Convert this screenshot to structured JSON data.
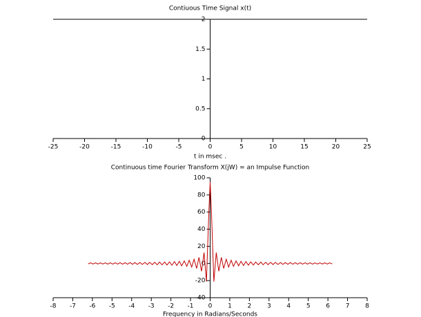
{
  "chart_data": [
    {
      "type": "line",
      "title": "Contiuous Time Signal x(t)",
      "x_label": "t in msec .",
      "x": [
        -25,
        25
      ],
      "series": [
        {
          "color": "#000000",
          "values": [
            2,
            2
          ]
        }
      ],
      "xlim": [
        -25,
        25
      ],
      "ylim": [
        0,
        2
      ],
      "xticks": [
        -25,
        -20,
        -15,
        -10,
        -5,
        0,
        5,
        10,
        15,
        20,
        25
      ],
      "yticks": [
        0,
        0.5,
        1,
        1.5,
        2
      ]
    },
    {
      "type": "line",
      "title": "Continuous time Fourier Transform X(jW) = an Impulse Function",
      "x_label": "Frequency in Radians/Seconds",
      "x": [
        -6.22,
        -6.09,
        -5.97,
        -5.84,
        -5.72,
        -5.59,
        -5.47,
        -5.34,
        -5.22,
        -5.09,
        -4.96,
        -4.84,
        -4.71,
        -4.59,
        -4.46,
        -4.34,
        -4.21,
        -4.08,
        -3.96,
        -3.83,
        -3.71,
        -3.58,
        -3.46,
        -3.33,
        -3.2,
        -3.08,
        -2.95,
        -2.83,
        -2.7,
        -2.58,
        -2.45,
        -2.32,
        -2.2,
        -2.07,
        -1.95,
        -1.82,
        -1.7,
        -1.57,
        -1.45,
        -1.32,
        -1.19,
        -1.07,
        -0.94,
        -0.82,
        -0.69,
        -0.57,
        -0.44,
        -0.31,
        -0.19,
        -0.06,
        0,
        0.06,
        0.19,
        0.31,
        0.44,
        0.57,
        0.69,
        0.82,
        0.94,
        1.07,
        1.19,
        1.32,
        1.45,
        1.57,
        1.7,
        1.82,
        1.95,
        2.07,
        2.2,
        2.32,
        2.45,
        2.58,
        2.7,
        2.83,
        2.95,
        3.08,
        3.2,
        3.33,
        3.46,
        3.58,
        3.71,
        3.83,
        3.96,
        4.08,
        4.21,
        4.34,
        4.46,
        4.59,
        4.71,
        4.84,
        4.96,
        5.09,
        5.22,
        5.34,
        5.47,
        5.59,
        5.72,
        5.84,
        5.97,
        6.09,
        6.22
      ],
      "series": [
        {
          "color": "#c00000",
          "values": [
            -0.6,
            0.7,
            -0.7,
            0.7,
            -0.7,
            0.7,
            -0.7,
            0.7,
            -0.8,
            0.8,
            -0.8,
            0.8,
            -0.8,
            0.9,
            -0.9,
            0.9,
            -0.9,
            1.0,
            -1.0,
            1.0,
            -1.1,
            1.1,
            -1.2,
            1.2,
            -1.2,
            1.3,
            -1.4,
            1.4,
            -1.5,
            1.6,
            -1.6,
            1.7,
            -1.8,
            1.9,
            -2.1,
            2.2,
            -2.4,
            2.5,
            -2.8,
            3.0,
            -3.4,
            3.7,
            -4.2,
            4.9,
            -5.8,
            7.1,
            -9.1,
            12.7,
            -21.2,
            63.7,
            95,
            63.7,
            -21.2,
            12.7,
            -9.1,
            7.1,
            -5.8,
            4.9,
            -4.2,
            3.7,
            -3.4,
            3.0,
            -2.8,
            2.5,
            -2.4,
            2.2,
            -2.1,
            1.9,
            -1.8,
            1.7,
            -1.6,
            1.6,
            -1.5,
            1.4,
            -1.4,
            1.3,
            -1.2,
            1.2,
            -1.2,
            1.1,
            -1.1,
            1.0,
            -1.0,
            1.0,
            -0.9,
            0.9,
            -0.9,
            0.9,
            -0.8,
            0.8,
            -0.8,
            0.8,
            -0.8,
            0.7,
            -0.7,
            0.7,
            -0.7,
            0.7,
            -0.7,
            0.7,
            -0.6
          ]
        }
      ],
      "xlim": [
        -8,
        8
      ],
      "ylim": [
        -40,
        100
      ],
      "xticks": [
        -8,
        -7,
        -6,
        -5,
        -4,
        -3,
        -2,
        -1,
        0,
        1,
        2,
        3,
        4,
        5,
        6,
        7,
        8
      ],
      "yticks": [
        -40,
        -20,
        0,
        20,
        40,
        60,
        80,
        100
      ]
    }
  ]
}
